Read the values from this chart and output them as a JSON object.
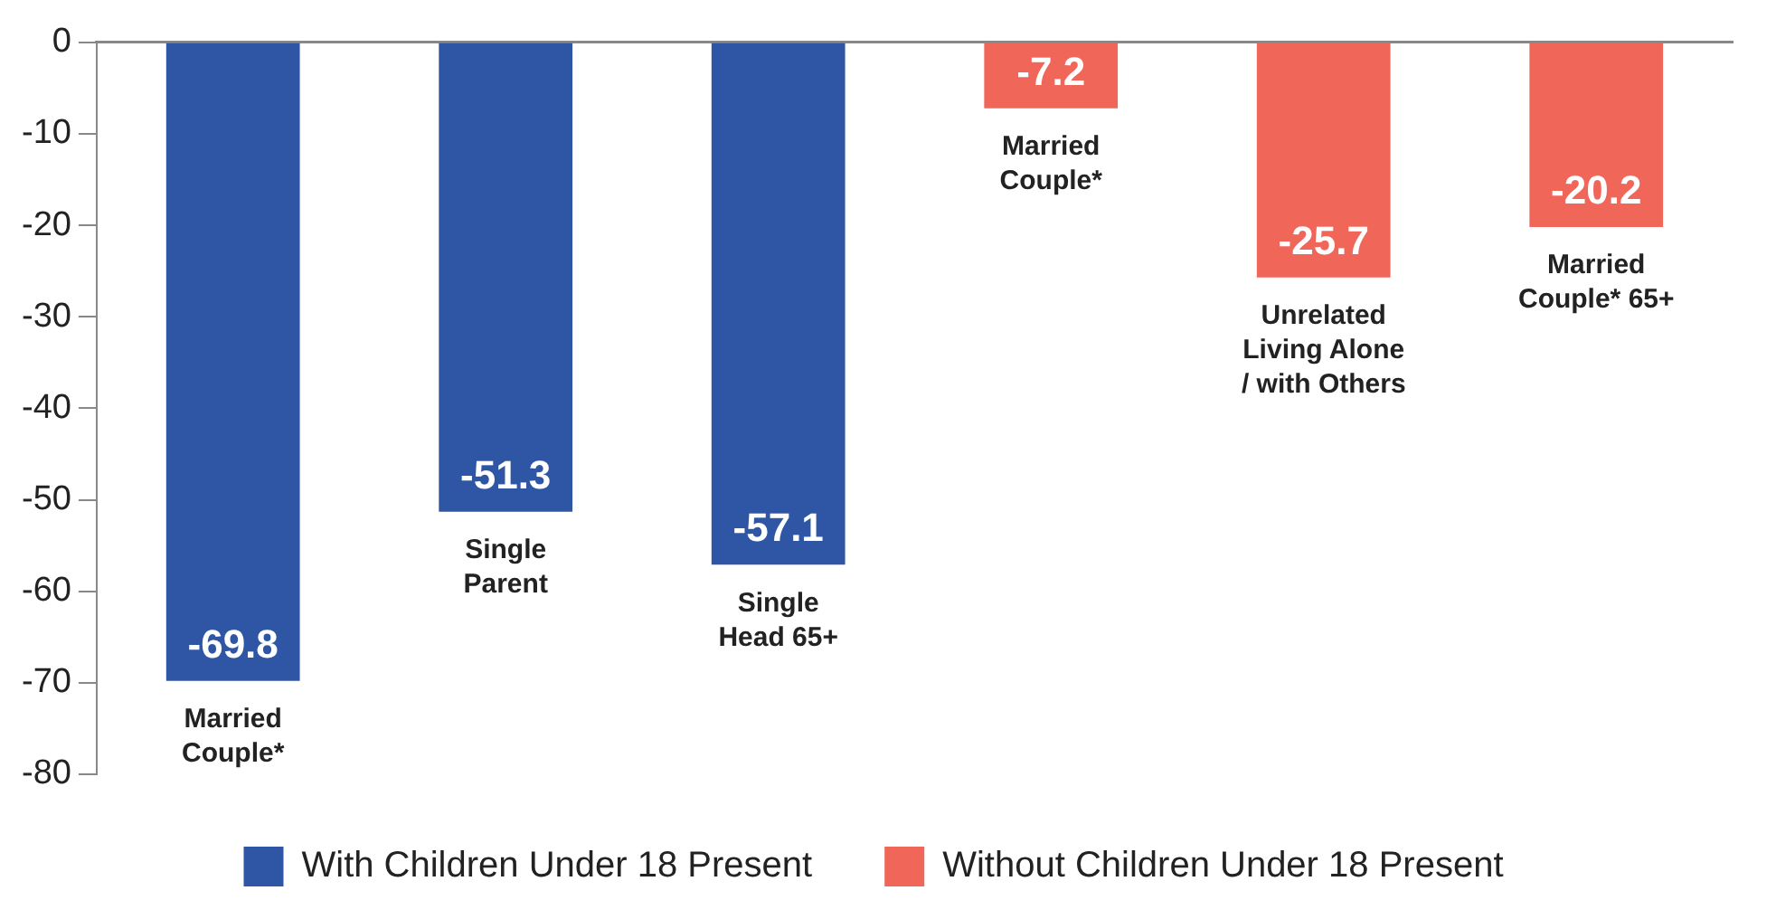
{
  "chart_data": {
    "type": "bar",
    "categories": [
      "Married\nCouple*",
      "Single\nParent",
      "Single\nHead 65+",
      "Married\nCouple*",
      "Unrelated\nLiving Alone\n/ with Others",
      "Married\nCouple* 65+"
    ],
    "series": [
      {
        "name": "With Children Under 18 Present",
        "color": "#2f56a5",
        "values": [
          -69.8,
          -51.3,
          -57.1,
          null,
          null,
          null
        ]
      },
      {
        "name": "Without Children Under 18 Present",
        "color": "#f0675a",
        "values": [
          null,
          null,
          null,
          -7.2,
          -25.7,
          -20.2
        ]
      }
    ],
    "ylim": [
      -80,
      0
    ],
    "yticks": [
      0,
      -10,
      -20,
      -30,
      -40,
      -50,
      -60,
      -70,
      -80
    ],
    "data_labels": true,
    "grid": false,
    "legend": "bottom"
  }
}
